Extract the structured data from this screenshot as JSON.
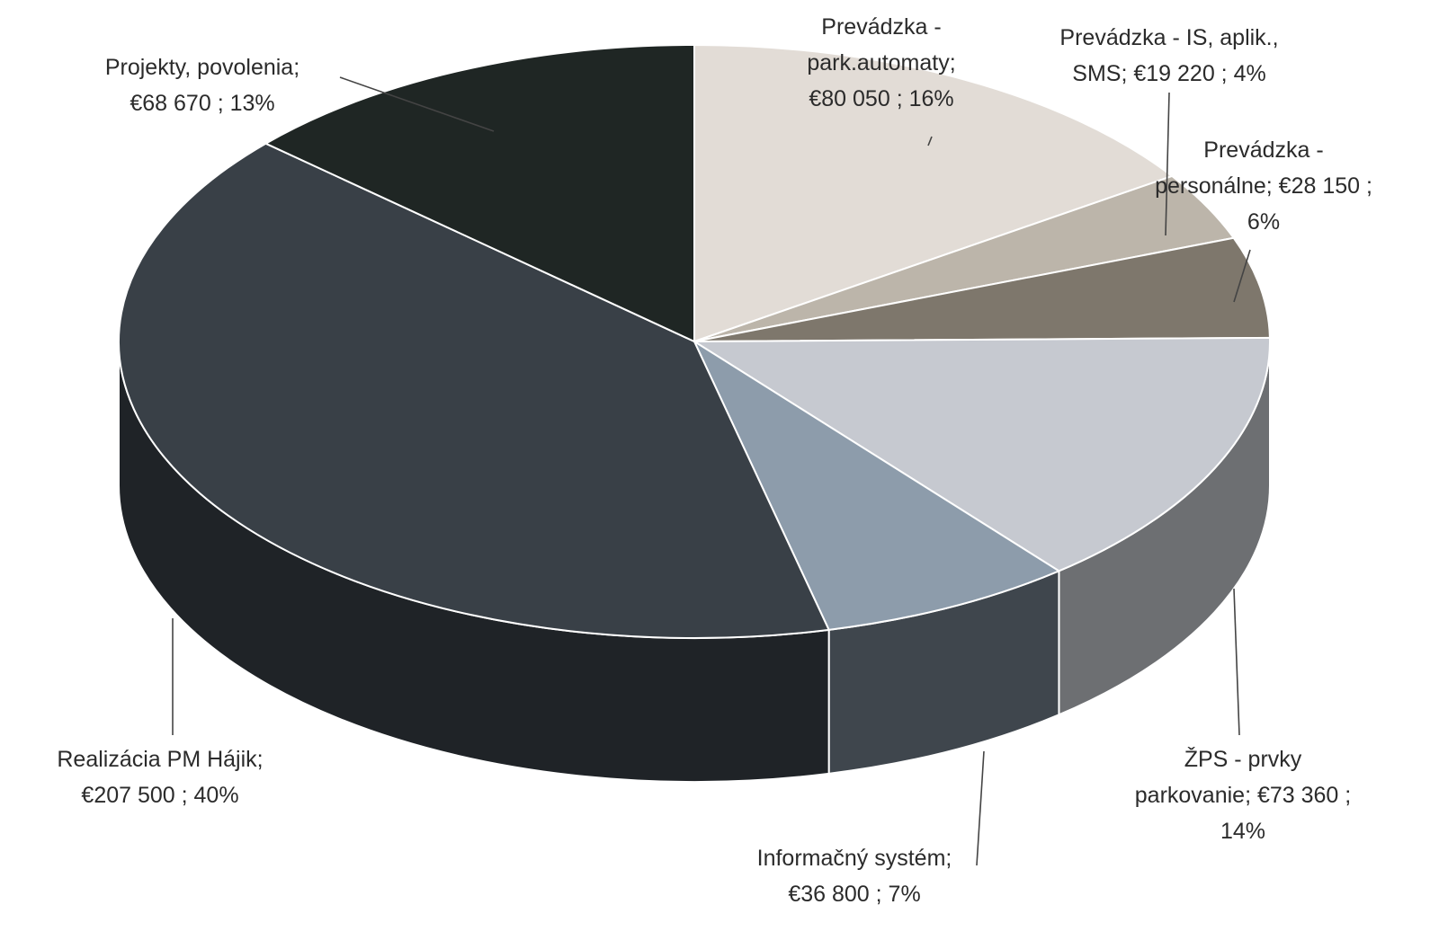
{
  "chart_data": {
    "type": "pie",
    "title": "",
    "style": "3d",
    "slices": [
      {
        "name": "Prevádzka - park.automaty",
        "value": 80050,
        "percent": 16,
        "color": "#e2dcd6",
        "label_lines": [
          "Prevádzka -",
          "park.automaty;",
          "€80 050 ; 16%"
        ]
      },
      {
        "name": "Prevádzka - IS, aplik., SMS",
        "value": 19220,
        "percent": 4,
        "color": "#bcb5aa",
        "label_lines": [
          "Prevádzka - IS, aplik.,",
          "SMS;  €19 220 ; 4%"
        ]
      },
      {
        "name": "Prevádzka - personálne",
        "value": 28150,
        "percent": 6,
        "color": "#7e776c",
        "label_lines": [
          "Prevádzka -",
          "personálne;  €28 150 ;",
          "6%"
        ]
      },
      {
        "name": "ŽPS - prvky parkovanie",
        "value": 73360,
        "percent": 14,
        "color": "#c6c9d0",
        "label_lines": [
          "ŽPS - prvky",
          "parkovanie;  €73 360 ;",
          "14%"
        ]
      },
      {
        "name": "Informačný systém",
        "value": 36800,
        "percent": 7,
        "color": "#8d9cab",
        "label_lines": [
          "Informačný systém;",
          "€36 800 ; 7%"
        ]
      },
      {
        "name": "Realizácia PM Hájik",
        "value": 207500,
        "percent": 40,
        "color": "#394047",
        "label_lines": [
          "Realizácia PM Hájik;",
          "€207 500 ; 40%"
        ]
      },
      {
        "name": "Projekty, povolenia",
        "value": 68670,
        "percent": 13,
        "color": "#1f2624",
        "label_lines": [
          "Projekty, povolenia;",
          "€68 670 ; 13%"
        ]
      }
    ]
  }
}
